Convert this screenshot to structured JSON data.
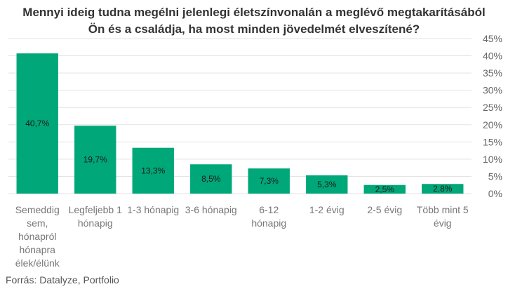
{
  "chart_data": {
    "type": "bar",
    "title_lines": [
      "Mennyi ideig tudna megélni jelenlegi életszínvonalán a meglévő megtakarításából",
      "Ön és a családja, ha most minden jövedelmét elveszítené?"
    ],
    "categories": [
      [
        "Semeddig",
        "sem,",
        "hónapról",
        "hónapra",
        "élek/élünk"
      ],
      [
        "Legfeljebb 1",
        "hónapig"
      ],
      [
        "1-3 hónapig"
      ],
      [
        "3-6 hónapig"
      ],
      [
        "6-12",
        "hónapig"
      ],
      [
        "1-2 évig"
      ],
      [
        "2-5 évig"
      ],
      [
        "Több mint 5",
        "évig"
      ]
    ],
    "values": [
      40.7,
      19.7,
      13.3,
      8.5,
      7.3,
      5.3,
      2.5,
      2.8
    ],
    "data_labels": [
      "40,7%",
      "19,7%",
      "13,3%",
      "8,5%",
      "7,3%",
      "5,3%",
      "2,5%",
      "2,8%"
    ],
    "ylim": [
      0,
      45
    ],
    "yticks": [
      0,
      5,
      10,
      15,
      20,
      25,
      30,
      35,
      40,
      45
    ],
    "ytick_labels": [
      "0%",
      "5%",
      "10%",
      "15%",
      "20%",
      "25%",
      "30%",
      "35%",
      "40%",
      "45%"
    ],
    "y_axis_side": "right",
    "grid": true,
    "colors": {
      "bar": "#00a779",
      "grid": "#e3e3e3",
      "axis_text": "#666666",
      "category_text": "#777777",
      "label_text": "#1a1a1a"
    }
  },
  "source": "Forrás: Datalyze, Portfolio"
}
